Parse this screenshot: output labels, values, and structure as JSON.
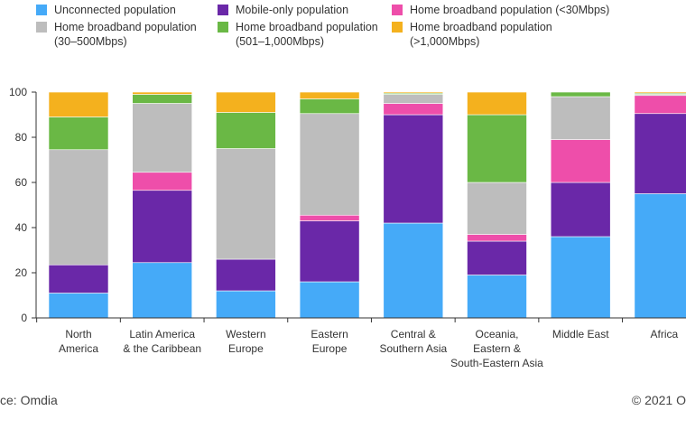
{
  "legend": [
    {
      "name": "Unconnected population",
      "color": "#45aaf8"
    },
    {
      "name": "Mobile-only population",
      "color": "#6a28a8"
    },
    {
      "name": "Home broadband population (<30Mbps)",
      "color": "#ee4eaa"
    },
    {
      "name": "Home broadband population\n(30–500Mbps)",
      "color": "#bdbdbd"
    },
    {
      "name": "Home broadband population\n(501–1,000Mbps)",
      "color": "#6ab845"
    },
    {
      "name": "Home broadband population\n(>1,000Mbps)",
      "color": "#f4b11e"
    }
  ],
  "footer": {
    "source": "ce: Omdia",
    "copyright": "© 2021 O"
  },
  "chart_data": {
    "type": "bar",
    "stacked": true,
    "title": "",
    "xlabel": "",
    "ylabel": "",
    "ylim": [
      0,
      100
    ],
    "yticks": [
      "0",
      "20",
      "40",
      "60",
      "80",
      "100"
    ],
    "grid": false,
    "legend_position": "top",
    "categories": [
      "North\nAmerica",
      "Latin America\n& the Caribbean",
      "Western\nEurope",
      "Eastern\nEurope",
      "Central &\nSouthern Asia",
      "Oceania,\nEastern &\nSouth-Eastern Asia",
      "Middle East",
      "Africa"
    ],
    "series": [
      {
        "name": "Unconnected population",
        "color": "#45aaf8",
        "values": [
          11,
          24.5,
          12,
          16,
          42,
          19,
          36,
          55
        ]
      },
      {
        "name": "Mobile-only population",
        "color": "#6a28a8",
        "values": [
          12.5,
          32,
          14,
          27,
          48,
          15,
          24,
          35.5
        ]
      },
      {
        "name": "Home broadband population (<30Mbps)",
        "color": "#ee4eaa",
        "values": [
          0,
          8,
          0,
          2.5,
          5,
          3,
          19,
          8
        ]
      },
      {
        "name": "Home broadband population (30–500Mbps)",
        "color": "#bdbdbd",
        "values": [
          51,
          30.5,
          49,
          45,
          4,
          23,
          19,
          0.5
        ]
      },
      {
        "name": "Home broadband population (501–1,000Mbps)",
        "color": "#6ab845",
        "values": [
          14.5,
          4,
          16,
          6.5,
          0.5,
          30,
          2,
          0.5
        ]
      },
      {
        "name": "Home broadband population (>1,000Mbps)",
        "color": "#f4b11e",
        "values": [
          11,
          1,
          9,
          3,
          0.5,
          10,
          0,
          0.5
        ]
      }
    ]
  }
}
